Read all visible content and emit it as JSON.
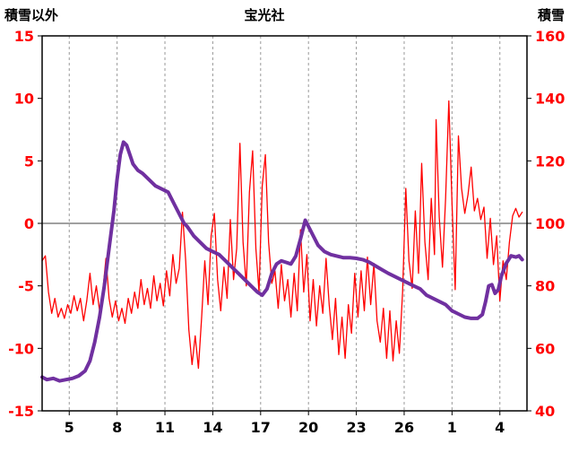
{
  "chart_data": {
    "type": "line",
    "title": "宝光社",
    "left_axis": {
      "label": "積雪以外",
      "min": -15,
      "max": 15,
      "ticks": [
        15,
        10,
        5,
        0,
        -5,
        -10,
        -15
      ]
    },
    "right_axis": {
      "label": "積雪",
      "min": 40,
      "max": 160,
      "ticks": [
        160,
        140,
        120,
        100,
        80,
        60,
        40
      ]
    },
    "x_axis": {
      "min": 3.3,
      "max": 33.7,
      "ticks": [
        5,
        8,
        11,
        14,
        17,
        20,
        23,
        26,
        29,
        32
      ],
      "tick_labels": [
        "5",
        "8",
        "11",
        "14",
        "17",
        "20",
        "23",
        "26",
        "1",
        "4"
      ]
    },
    "grid": {
      "vertical": "dashed",
      "horizontal": "zero-line-only"
    },
    "legend_position": "none",
    "colors": {
      "grid": "#999999",
      "zero_line": "#808080",
      "frame": "#000000",
      "axis_text": "#FF0000",
      "x_text": "#000000"
    },
    "series": [
      {
        "key": "temperature",
        "name": "積雪以外",
        "axis": "left",
        "color": "#FF0000",
        "width": 1.3,
        "points": [
          [
            3.3,
            -3.0
          ],
          [
            3.5,
            -2.6
          ],
          [
            3.7,
            -5.5
          ],
          [
            3.9,
            -7.2
          ],
          [
            4.1,
            -6.0
          ],
          [
            4.3,
            -7.5
          ],
          [
            4.5,
            -6.8
          ],
          [
            4.7,
            -7.6
          ],
          [
            4.9,
            -6.5
          ],
          [
            5.1,
            -7.2
          ],
          [
            5.3,
            -5.8
          ],
          [
            5.5,
            -7.0
          ],
          [
            5.7,
            -6.0
          ],
          [
            5.9,
            -7.8
          ],
          [
            6.1,
            -6.2
          ],
          [
            6.3,
            -4.0
          ],
          [
            6.5,
            -6.5
          ],
          [
            6.7,
            -5.0
          ],
          [
            6.9,
            -7.0
          ],
          [
            7.1,
            -5.5
          ],
          [
            7.3,
            -2.8
          ],
          [
            7.5,
            -6.0
          ],
          [
            7.7,
            -7.5
          ],
          [
            7.9,
            -6.2
          ],
          [
            8.1,
            -7.8
          ],
          [
            8.3,
            -6.8
          ],
          [
            8.5,
            -8.0
          ],
          [
            8.7,
            -6.0
          ],
          [
            8.9,
            -7.2
          ],
          [
            9.1,
            -5.5
          ],
          [
            9.3,
            -6.8
          ],
          [
            9.5,
            -4.5
          ],
          [
            9.7,
            -6.5
          ],
          [
            9.9,
            -5.2
          ],
          [
            10.1,
            -6.8
          ],
          [
            10.3,
            -4.2
          ],
          [
            10.5,
            -6.2
          ],
          [
            10.7,
            -4.8
          ],
          [
            10.9,
            -6.6
          ],
          [
            11.1,
            -3.8
          ],
          [
            11.3,
            -5.8
          ],
          [
            11.5,
            -2.5
          ],
          [
            11.7,
            -4.8
          ],
          [
            11.9,
            -3.6
          ],
          [
            12.1,
            0.9
          ],
          [
            12.3,
            -3.0
          ],
          [
            12.5,
            -8.5
          ],
          [
            12.7,
            -11.3
          ],
          [
            12.9,
            -9.0
          ],
          [
            13.1,
            -11.6
          ],
          [
            13.3,
            -7.5
          ],
          [
            13.5,
            -3.0
          ],
          [
            13.7,
            -6.5
          ],
          [
            13.9,
            -1.0
          ],
          [
            14.1,
            0.8
          ],
          [
            14.3,
            -4.5
          ],
          [
            14.5,
            -7.0
          ],
          [
            14.7,
            -3.5
          ],
          [
            14.9,
            -6.0
          ],
          [
            15.1,
            0.3
          ],
          [
            15.3,
            -4.5
          ],
          [
            15.5,
            -2.0
          ],
          [
            15.7,
            6.4
          ],
          [
            15.9,
            -1.5
          ],
          [
            16.1,
            -5.0
          ],
          [
            16.3,
            2.5
          ],
          [
            16.5,
            5.8
          ],
          [
            16.7,
            -2.0
          ],
          [
            16.9,
            -5.5
          ],
          [
            17.1,
            3.0
          ],
          [
            17.3,
            5.5
          ],
          [
            17.5,
            -1.5
          ],
          [
            17.7,
            -4.8
          ],
          [
            17.9,
            -3.8
          ],
          [
            18.1,
            -6.8
          ],
          [
            18.3,
            -3.3
          ],
          [
            18.5,
            -6.2
          ],
          [
            18.7,
            -4.5
          ],
          [
            18.9,
            -7.5
          ],
          [
            19.1,
            -4.0
          ],
          [
            19.3,
            -7.0
          ],
          [
            19.5,
            -0.5
          ],
          [
            19.7,
            -5.5
          ],
          [
            19.9,
            -2.5
          ],
          [
            20.1,
            -7.8
          ],
          [
            20.3,
            -4.5
          ],
          [
            20.5,
            -8.2
          ],
          [
            20.7,
            -5.0
          ],
          [
            20.9,
            -7.2
          ],
          [
            21.1,
            -2.8
          ],
          [
            21.3,
            -6.5
          ],
          [
            21.5,
            -9.3
          ],
          [
            21.7,
            -6.0
          ],
          [
            21.9,
            -10.5
          ],
          [
            22.1,
            -7.5
          ],
          [
            22.3,
            -10.8
          ],
          [
            22.5,
            -6.5
          ],
          [
            22.7,
            -8.8
          ],
          [
            22.9,
            -4.0
          ],
          [
            23.1,
            -7.5
          ],
          [
            23.3,
            -3.8
          ],
          [
            23.5,
            -7.0
          ],
          [
            23.7,
            -2.7
          ],
          [
            23.9,
            -6.5
          ],
          [
            24.1,
            -3.2
          ],
          [
            24.3,
            -7.8
          ],
          [
            24.5,
            -9.5
          ],
          [
            24.7,
            -6.8
          ],
          [
            24.9,
            -10.8
          ],
          [
            25.1,
            -7.0
          ],
          [
            25.3,
            -11.0
          ],
          [
            25.5,
            -7.8
          ],
          [
            25.7,
            -10.4
          ],
          [
            25.9,
            -5.5
          ],
          [
            26.1,
            2.8
          ],
          [
            26.3,
            -3.0
          ],
          [
            26.5,
            -5.2
          ],
          [
            26.7,
            1.0
          ],
          [
            26.9,
            -4.0
          ],
          [
            27.1,
            4.8
          ],
          [
            27.3,
            -1.5
          ],
          [
            27.5,
            -4.5
          ],
          [
            27.7,
            2.0
          ],
          [
            27.9,
            -2.5
          ],
          [
            28.0,
            8.3
          ],
          [
            28.2,
            0.5
          ],
          [
            28.4,
            -3.5
          ],
          [
            28.6,
            2.0
          ],
          [
            28.8,
            9.8
          ],
          [
            29.0,
            1.5
          ],
          [
            29.2,
            -5.3
          ],
          [
            29.4,
            7.0
          ],
          [
            29.6,
            2.8
          ],
          [
            29.8,
            0.8
          ],
          [
            30.0,
            2.3
          ],
          [
            30.2,
            4.5
          ],
          [
            30.4,
            1.0
          ],
          [
            30.6,
            2.0
          ],
          [
            30.8,
            0.3
          ],
          [
            31.0,
            1.3
          ],
          [
            31.2,
            -2.8
          ],
          [
            31.4,
            0.4
          ],
          [
            31.6,
            -3.3
          ],
          [
            31.8,
            -1.0
          ],
          [
            32.0,
            -6.2
          ],
          [
            32.2,
            -3.0
          ],
          [
            32.4,
            -4.5
          ],
          [
            32.6,
            -1.5
          ],
          [
            32.8,
            0.6
          ],
          [
            33.0,
            1.2
          ],
          [
            33.2,
            0.5
          ],
          [
            33.4,
            0.9
          ]
        ]
      },
      {
        "key": "snow-depth",
        "name": "積雪",
        "axis": "right",
        "color": "#7030A0",
        "width": 4,
        "points": [
          [
            3.3,
            50.8
          ],
          [
            3.6,
            50.0
          ],
          [
            4.0,
            50.4
          ],
          [
            4.4,
            49.6
          ],
          [
            4.8,
            50.0
          ],
          [
            5.2,
            50.4
          ],
          [
            5.6,
            51.2
          ],
          [
            6.0,
            52.8
          ],
          [
            6.3,
            56.0
          ],
          [
            6.6,
            62.0
          ],
          [
            6.9,
            70.0
          ],
          [
            7.2,
            80.0
          ],
          [
            7.5,
            92.0
          ],
          [
            7.8,
            104.0
          ],
          [
            8.0,
            114.0
          ],
          [
            8.2,
            122.0
          ],
          [
            8.4,
            126.0
          ],
          [
            8.6,
            125.0
          ],
          [
            8.8,
            122.0
          ],
          [
            9.0,
            119.0
          ],
          [
            9.3,
            117.0
          ],
          [
            9.6,
            116.0
          ],
          [
            10.0,
            114.0
          ],
          [
            10.4,
            112.0
          ],
          [
            10.8,
            111.0
          ],
          [
            11.2,
            110.0
          ],
          [
            11.6,
            106.0
          ],
          [
            12.0,
            102.0
          ],
          [
            12.2,
            100.0
          ],
          [
            12.4,
            99.0
          ],
          [
            12.8,
            96.0
          ],
          [
            13.2,
            94.0
          ],
          [
            13.6,
            92.0
          ],
          [
            14.0,
            91.0
          ],
          [
            14.4,
            90.0
          ],
          [
            14.8,
            88.0
          ],
          [
            15.2,
            86.0
          ],
          [
            15.6,
            84.0
          ],
          [
            16.0,
            82.0
          ],
          [
            16.4,
            80.0
          ],
          [
            16.8,
            78.0
          ],
          [
            17.1,
            77.0
          ],
          [
            17.4,
            79.0
          ],
          [
            17.7,
            84.0
          ],
          [
            18.0,
            87.0
          ],
          [
            18.3,
            88.0
          ],
          [
            18.6,
            87.5
          ],
          [
            18.9,
            87.0
          ],
          [
            19.2,
            89.5
          ],
          [
            19.5,
            95.0
          ],
          [
            19.8,
            101.0
          ],
          [
            20.0,
            99.0
          ],
          [
            20.3,
            96.0
          ],
          [
            20.6,
            93.0
          ],
          [
            21.0,
            91.0
          ],
          [
            21.4,
            90.0
          ],
          [
            21.8,
            89.5
          ],
          [
            22.2,
            89.0
          ],
          [
            22.6,
            89.0
          ],
          [
            23.0,
            88.8
          ],
          [
            23.4,
            88.4
          ],
          [
            23.8,
            87.6
          ],
          [
            24.2,
            86.4
          ],
          [
            24.6,
            85.2
          ],
          [
            25.0,
            84.0
          ],
          [
            25.4,
            83.0
          ],
          [
            25.8,
            82.0
          ],
          [
            26.2,
            81.0
          ],
          [
            26.6,
            80.0
          ],
          [
            27.0,
            79.0
          ],
          [
            27.4,
            77.0
          ],
          [
            27.8,
            76.0
          ],
          [
            28.2,
            75.0
          ],
          [
            28.6,
            74.0
          ],
          [
            29.0,
            72.0
          ],
          [
            29.4,
            71.0
          ],
          [
            29.8,
            70.0
          ],
          [
            30.2,
            69.6
          ],
          [
            30.6,
            69.6
          ],
          [
            30.9,
            70.8
          ],
          [
            31.1,
            74.8
          ],
          [
            31.3,
            80.0
          ],
          [
            31.5,
            80.4
          ],
          [
            31.7,
            77.6
          ],
          [
            31.9,
            78.8
          ],
          [
            32.1,
            83.2
          ],
          [
            32.4,
            87.2
          ],
          [
            32.7,
            89.6
          ],
          [
            33.0,
            89.2
          ],
          [
            33.2,
            89.6
          ],
          [
            33.4,
            88.4
          ]
        ]
      }
    ]
  }
}
